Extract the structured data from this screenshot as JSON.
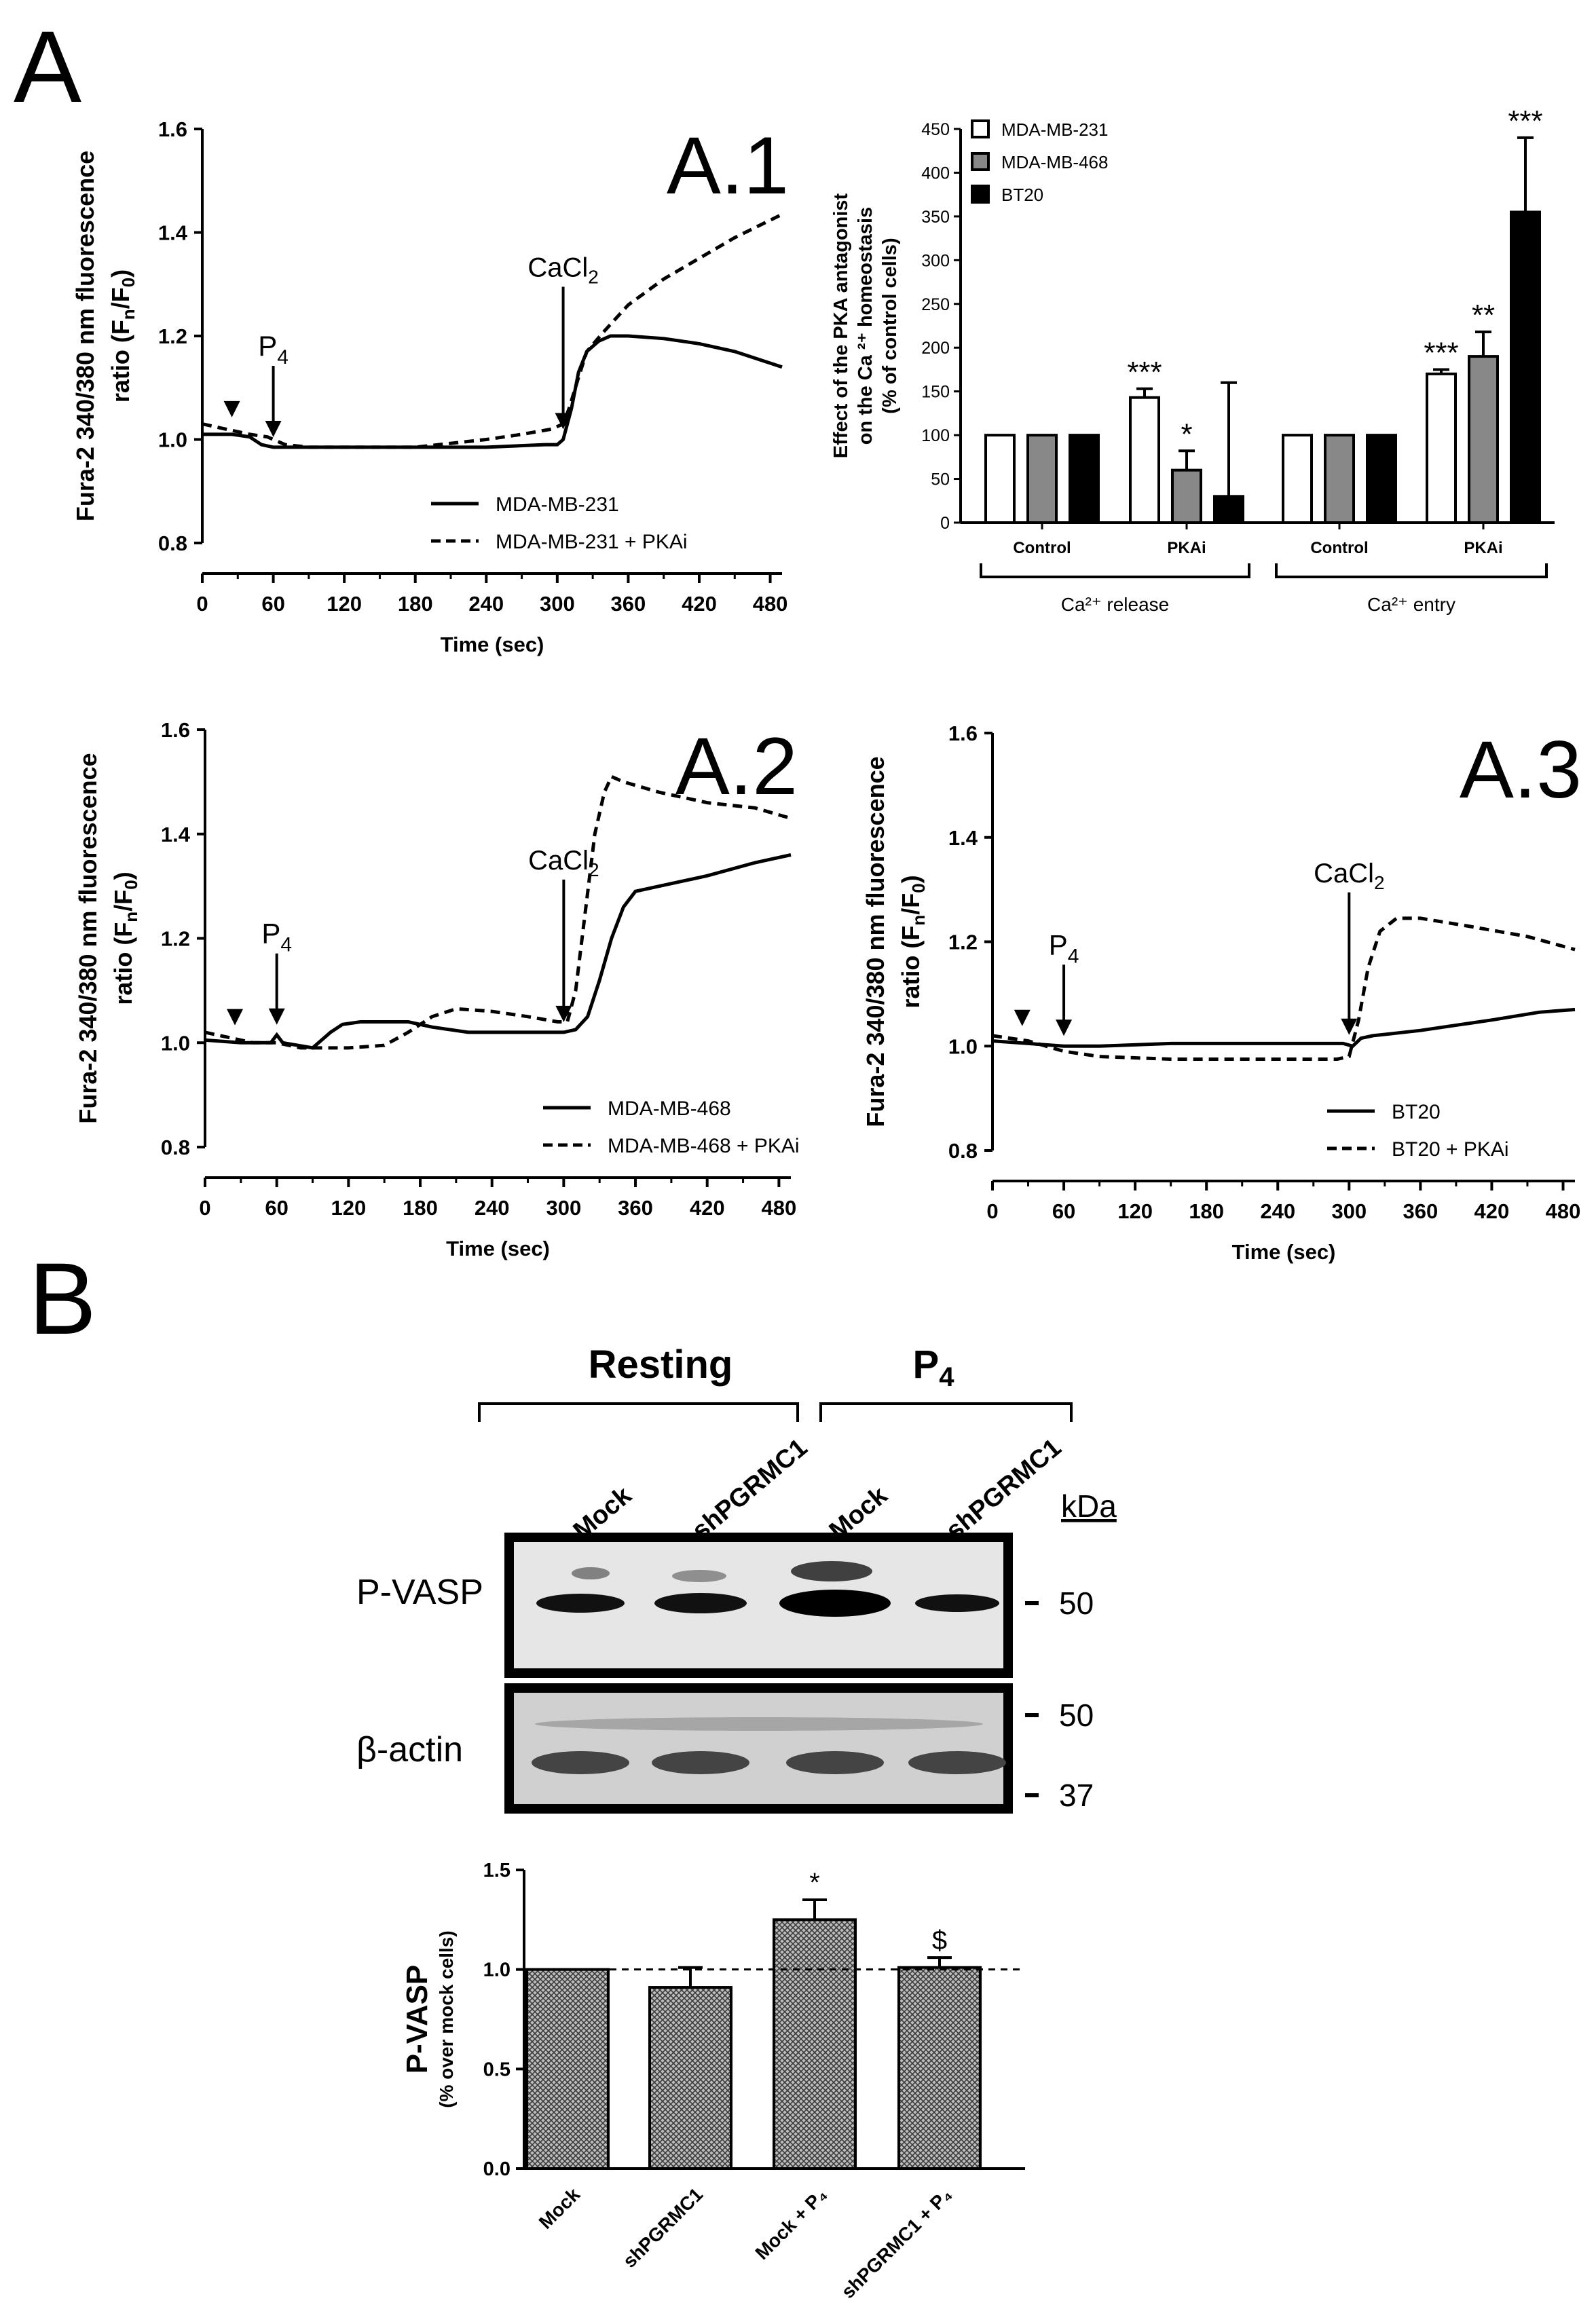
{
  "figure": {
    "panel_a_letter": "A",
    "panel_b_letter": "B",
    "fura_ylabel_line1": "Fura-2 340/380 nm fluorescence",
    "fura_ylabel_line2_pre": "ratio  (F",
    "fura_ylabel_sub_n": "n",
    "fura_ylabel_slash": "/F",
    "fura_ylabel_sub_0": "0",
    "fura_ylabel_close": ")",
    "time_label": "Time (sec)",
    "p4_main": "P",
    "p4_sub": "4",
    "cacl_main": "CaCl",
    "cacl_sub": "2"
  },
  "chart_data": [
    {
      "id": "A.1",
      "type": "line",
      "panel_label": "A.1",
      "xlabel": "Time (sec)",
      "ylabel": "Fura-2 340/380 nm fluorescence ratio (Fn/F0)",
      "xlim": [
        0,
        490
      ],
      "ylim": [
        0.8,
        1.6
      ],
      "xticks": [
        "0",
        "60",
        "120",
        "180",
        "240",
        "300",
        "360",
        "420",
        "480"
      ],
      "yticks": [
        "0.8",
        "1.0",
        "1.2",
        "1.4",
        "1.6"
      ],
      "series": [
        {
          "name": "MDA-MB-231",
          "style": "solid",
          "points": [
            [
              0,
              1.01
            ],
            [
              25,
              1.01
            ],
            [
              40,
              1.005
            ],
            [
              50,
              0.99
            ],
            [
              60,
              0.985
            ],
            [
              80,
              0.985
            ],
            [
              120,
              0.985
            ],
            [
              180,
              0.985
            ],
            [
              240,
              0.985
            ],
            [
              290,
              0.99
            ],
            [
              300,
              0.99
            ],
            [
              305,
              1.0
            ],
            [
              312,
              1.06
            ],
            [
              318,
              1.13
            ],
            [
              325,
              1.17
            ],
            [
              335,
              1.19
            ],
            [
              345,
              1.2
            ],
            [
              360,
              1.2
            ],
            [
              390,
              1.195
            ],
            [
              420,
              1.185
            ],
            [
              450,
              1.17
            ],
            [
              490,
              1.14
            ]
          ]
        },
        {
          "name": "MDA-MB-231 + PKAi",
          "style": "dashed",
          "points": [
            [
              0,
              1.03
            ],
            [
              20,
              1.02
            ],
            [
              40,
              1.01
            ],
            [
              55,
              1.005
            ],
            [
              60,
              1.0
            ],
            [
              70,
              0.99
            ],
            [
              90,
              0.985
            ],
            [
              120,
              0.985
            ],
            [
              180,
              0.985
            ],
            [
              240,
              1.0
            ],
            [
              270,
              1.01
            ],
            [
              295,
              1.02
            ],
            [
              305,
              1.03
            ],
            [
              310,
              1.06
            ],
            [
              318,
              1.12
            ],
            [
              325,
              1.17
            ],
            [
              340,
              1.21
            ],
            [
              360,
              1.26
            ],
            [
              390,
              1.31
            ],
            [
              420,
              1.35
            ],
            [
              450,
              1.39
            ],
            [
              490,
              1.435
            ]
          ]
        }
      ],
      "annotations": {
        "triangle_time": 25,
        "p4_time": 60,
        "cacl_time": 305
      }
    },
    {
      "id": "A.ca",
      "type": "bar",
      "title": "",
      "ylabel_line1": "Effect of  the PKA antagonist",
      "ylabel_line2": "on the Ca ²⁺ homeostasis",
      "ylabel_line3": "(% of control cells)",
      "ylim": [
        0,
        450
      ],
      "yticks": [
        "0",
        "50",
        "100",
        "150",
        "200",
        "250",
        "300",
        "350",
        "400",
        "450"
      ],
      "categories": [
        "Control",
        "PKAi",
        "Control",
        "PKAi"
      ],
      "groups": [
        "Ca²⁺ release",
        "Ca²⁺ entry"
      ],
      "series": [
        {
          "name": "MDA-MB-231",
          "color": "#ffffff",
          "values": [
            100,
            143,
            100,
            170
          ],
          "errors": [
            0,
            10,
            0,
            5
          ],
          "sig": [
            "",
            "***",
            "",
            "***"
          ]
        },
        {
          "name": "MDA-MB-468",
          "color": "#888888",
          "values": [
            100,
            60,
            100,
            190
          ],
          "errors": [
            0,
            22,
            0,
            28
          ],
          "sig": [
            "",
            "*",
            "",
            "**"
          ]
        },
        {
          "name": "BT20",
          "color": "#000000",
          "values": [
            100,
            30,
            100,
            355
          ],
          "errors": [
            0,
            130,
            0,
            85
          ],
          "sig": [
            "",
            "",
            "",
            "***"
          ]
        }
      ]
    },
    {
      "id": "A.2",
      "type": "line",
      "panel_label": "A.2",
      "xlabel": "Time (sec)",
      "ylabel": "Fura-2 340/380 nm fluorescence ratio (Fn/F0)",
      "xlim": [
        0,
        490
      ],
      "ylim": [
        0.8,
        1.6
      ],
      "xticks": [
        "0",
        "60",
        "120",
        "180",
        "240",
        "300",
        "360",
        "420",
        "480"
      ],
      "yticks": [
        "0.8",
        "1.0",
        "1.2",
        "1.4",
        "1.6"
      ],
      "series": [
        {
          "name": "MDA-MB-468",
          "style": "solid",
          "points": [
            [
              0,
              1.005
            ],
            [
              30,
              1.0
            ],
            [
              55,
              1.0
            ],
            [
              60,
              1.015
            ],
            [
              65,
              1.0
            ],
            [
              90,
              0.99
            ],
            [
              105,
              1.02
            ],
            [
              115,
              1.035
            ],
            [
              130,
              1.04
            ],
            [
              150,
              1.04
            ],
            [
              170,
              1.04
            ],
            [
              190,
              1.03
            ],
            [
              220,
              1.02
            ],
            [
              260,
              1.02
            ],
            [
              300,
              1.02
            ],
            [
              310,
              1.025
            ],
            [
              320,
              1.05
            ],
            [
              330,
              1.12
            ],
            [
              340,
              1.2
            ],
            [
              350,
              1.26
            ],
            [
              360,
              1.29
            ],
            [
              380,
              1.3
            ],
            [
              420,
              1.32
            ],
            [
              460,
              1.345
            ],
            [
              490,
              1.36
            ]
          ]
        },
        {
          "name": "MDA-MB-468 + PKAi",
          "style": "dashed",
          "points": [
            [
              0,
              1.02
            ],
            [
              20,
              1.01
            ],
            [
              40,
              1.0
            ],
            [
              60,
              1.0
            ],
            [
              80,
              0.99
            ],
            [
              120,
              0.99
            ],
            [
              150,
              0.995
            ],
            [
              170,
              1.02
            ],
            [
              190,
              1.05
            ],
            [
              210,
              1.065
            ],
            [
              240,
              1.06
            ],
            [
              270,
              1.05
            ],
            [
              295,
              1.04
            ],
            [
              303,
              1.04
            ],
            [
              310,
              1.1
            ],
            [
              318,
              1.25
            ],
            [
              326,
              1.4
            ],
            [
              334,
              1.48
            ],
            [
              340,
              1.51
            ],
            [
              350,
              1.5
            ],
            [
              380,
              1.48
            ],
            [
              420,
              1.46
            ],
            [
              460,
              1.45
            ],
            [
              490,
              1.43
            ]
          ]
        }
      ],
      "annotations": {
        "triangle_time": 25,
        "p4_time": 60,
        "cacl_time": 300
      }
    },
    {
      "id": "A.3",
      "type": "line",
      "panel_label": "A.3",
      "xlabel": "Time (sec)",
      "ylabel": "Fura-2 340/380 nm fluorescence ratio (Fn/F0)",
      "xlim": [
        0,
        490
      ],
      "ylim": [
        0.8,
        1.6
      ],
      "xticks": [
        "0",
        "60",
        "120",
        "180",
        "240",
        "300",
        "360",
        "420",
        "480"
      ],
      "yticks": [
        "0.8",
        "1.0",
        "1.2",
        "1.4",
        "1.6"
      ],
      "series": [
        {
          "name": "BT20",
          "style": "solid",
          "points": [
            [
              0,
              1.01
            ],
            [
              30,
              1.005
            ],
            [
              60,
              1.0
            ],
            [
              90,
              1.0
            ],
            [
              150,
              1.005
            ],
            [
              200,
              1.005
            ],
            [
              250,
              1.005
            ],
            [
              295,
              1.005
            ],
            [
              303,
              1.0
            ],
            [
              310,
              1.015
            ],
            [
              320,
              1.02
            ],
            [
              360,
              1.03
            ],
            [
              420,
              1.05
            ],
            [
              460,
              1.065
            ],
            [
              490,
              1.07
            ]
          ]
        },
        {
          "name": "BT20 + PKAi",
          "style": "dashed",
          "points": [
            [
              0,
              1.02
            ],
            [
              30,
              1.01
            ],
            [
              60,
              0.99
            ],
            [
              90,
              0.98
            ],
            [
              150,
              0.975
            ],
            [
              200,
              0.975
            ],
            [
              250,
              0.975
            ],
            [
              290,
              0.975
            ],
            [
              300,
              0.98
            ],
            [
              308,
              1.05
            ],
            [
              316,
              1.15
            ],
            [
              326,
              1.22
            ],
            [
              340,
              1.245
            ],
            [
              360,
              1.245
            ],
            [
              400,
              1.23
            ],
            [
              450,
              1.21
            ],
            [
              490,
              1.185
            ]
          ]
        }
      ],
      "annotations": {
        "triangle_time": 25,
        "p4_time": 60,
        "cacl_time": 300
      }
    },
    {
      "id": "B.bar",
      "type": "bar",
      "ylabel": "P-VASP",
      "ylabel_sub": "(% over mock cells)",
      "ylim": [
        0,
        1.5
      ],
      "yticks": [
        "0.0",
        "0.5",
        "1.0",
        "1.5"
      ],
      "reference_line": 1.0,
      "categories": [
        "Mock",
        "shPGRMC1",
        "Mock + P₄",
        "shPGRMC1 + P₄"
      ],
      "values": [
        1.0,
        0.91,
        1.25,
        1.01
      ],
      "errors": [
        0,
        0.1,
        0.1,
        0.05
      ],
      "sig": [
        "",
        "",
        "*",
        "$"
      ]
    }
  ],
  "blot": {
    "group_resting": "Resting",
    "group_p4_main": "P",
    "group_p4_sub": "4",
    "lane_labels": [
      "Mock",
      "shPGRMC1",
      "Mock",
      "shPGRMC1"
    ],
    "kda_label": "kDa",
    "row_pvasp": "P-VASP",
    "row_actin": "β-actin",
    "marker_50": "50",
    "marker_50b": "50",
    "marker_37": "37"
  }
}
